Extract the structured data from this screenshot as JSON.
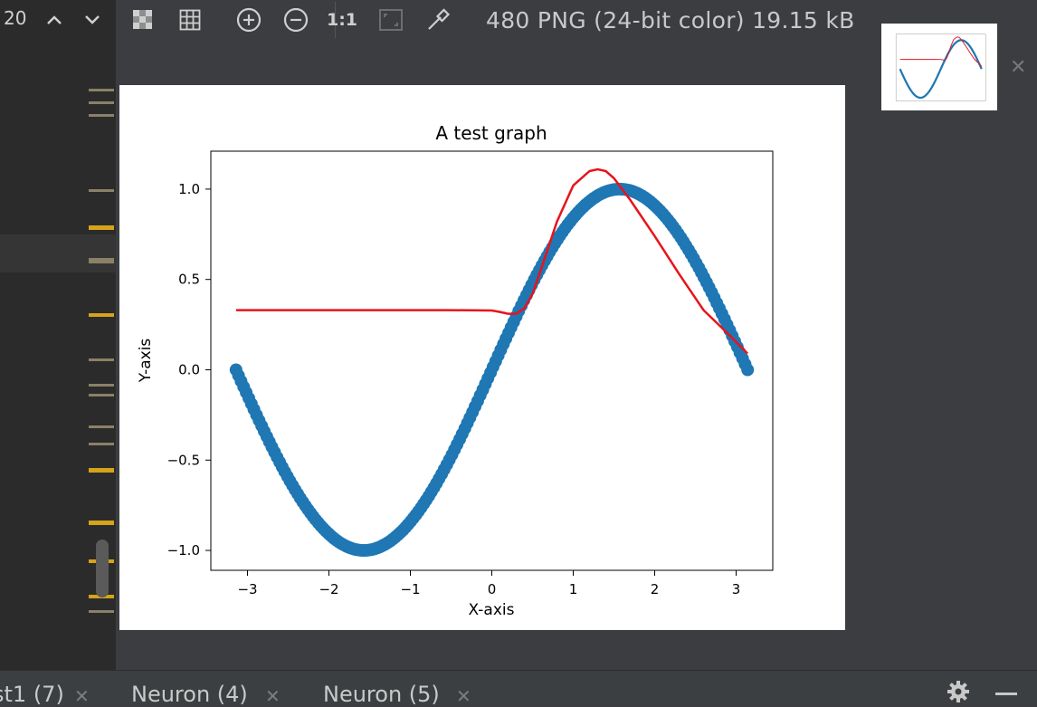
{
  "toolbar": {
    "zoom_value": "20",
    "image_info": "480 PNG (24-bit color) 19.15 kB",
    "actual_size_label": "1:1",
    "icons": [
      "chevron-up-icon",
      "chevron-down-icon",
      "chessboard-icon",
      "grid-icon",
      "zoom-in-icon",
      "zoom-out-icon",
      "actual-size-icon",
      "fit-icon",
      "color-picker-icon"
    ]
  },
  "tabs": [
    {
      "label": "st1 (7)"
    },
    {
      "label": "Neuron (4)"
    },
    {
      "label": "Neuron (5)"
    }
  ],
  "colors": {
    "scatter": "#1f77b4",
    "fit_line": "#e8131b"
  },
  "chart_data": {
    "type": "scatter",
    "title": "A test graph",
    "xlabel": "X-axis",
    "ylabel": "Y-axis",
    "xlim": [
      -3.45,
      3.45
    ],
    "ylim": [
      -1.11,
      1.21
    ],
    "xticks": [
      -3,
      -2,
      -1,
      0,
      1,
      2,
      3
    ],
    "xtick_labels": [
      "−3",
      "−2",
      "−1",
      "0",
      "1",
      "2",
      "3"
    ],
    "yticks": [
      -1.0,
      -0.5,
      0.0,
      0.5,
      1.0
    ],
    "ytick_labels": [
      "−1.0",
      "−0.5",
      "0.0",
      "0.5",
      "1.0"
    ],
    "grid": false,
    "series": [
      {
        "style": "scatter",
        "function": "sin(x)",
        "x_range": [
          -3.1416,
          3.1416
        ],
        "n_points": 200
      },
      {
        "style": "line",
        "x": [
          -3.14,
          -2.5,
          -2.0,
          -1.5,
          -1.0,
          -0.5,
          0.0,
          0.1,
          0.2,
          0.3,
          0.4,
          0.5,
          0.6,
          0.8,
          1.0,
          1.2,
          1.3,
          1.4,
          1.5,
          1.7,
          2.0,
          2.3,
          2.6,
          2.9,
          3.14
        ],
        "y": [
          0.33,
          0.33,
          0.33,
          0.33,
          0.33,
          0.33,
          0.328,
          0.32,
          0.31,
          0.31,
          0.34,
          0.42,
          0.55,
          0.82,
          1.02,
          1.1,
          1.11,
          1.1,
          1.06,
          0.94,
          0.74,
          0.53,
          0.33,
          0.2,
          0.09
        ]
      }
    ]
  }
}
